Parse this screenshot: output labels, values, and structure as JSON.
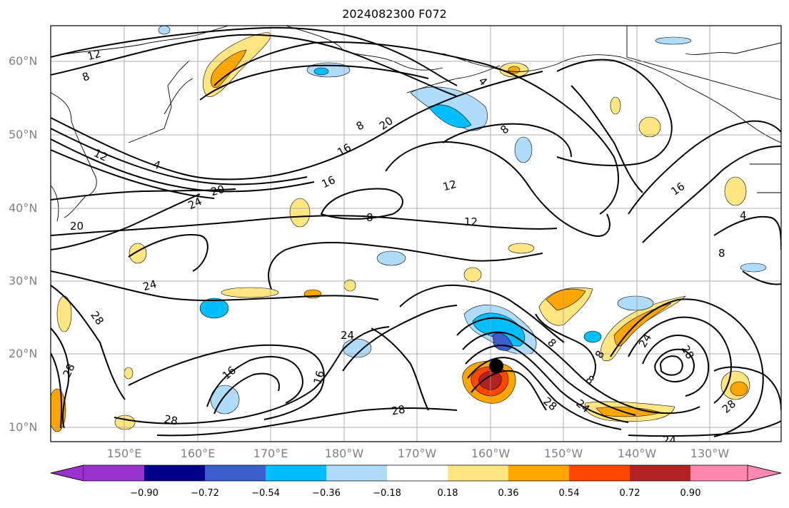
{
  "title": "2024082300 F072",
  "lat_labels": [
    "60°N",
    "50°N",
    "40°N",
    "30°N",
    "20°N",
    "10°N"
  ],
  "lon_labels": [
    "150°E",
    "160°E",
    "170°E",
    "180°W",
    "170°W",
    "160°W",
    "150°W",
    "140°W",
    "130°W"
  ],
  "colorbar": {
    "ticks": [
      "−0.90",
      "−0.72",
      "−0.54",
      "−0.36",
      "−0.18",
      "0.18",
      "0.36",
      "0.54",
      "0.72",
      "0.90"
    ],
    "colors": [
      "#9932cc",
      "#00008b",
      "#3a5fcd",
      "#00bfff",
      "#afdcfb",
      "#ffffff",
      "#ffe680",
      "#ffa500",
      "#ff4500",
      "#b22222",
      "#ff88b0"
    ]
  },
  "contour_labels": [
    "12",
    "8",
    "4",
    "12",
    "20",
    "24",
    "20",
    "16",
    "16",
    "12",
    "8",
    "12",
    "8",
    "4",
    "8",
    "16",
    "4",
    "8",
    "20",
    "24",
    "28",
    "24",
    "24",
    "16",
    "16",
    "28",
    "28",
    "28",
    "28",
    "8",
    "8",
    "8",
    "24",
    "28",
    "28",
    "24"
  ],
  "storm_marker": "black dot"
}
